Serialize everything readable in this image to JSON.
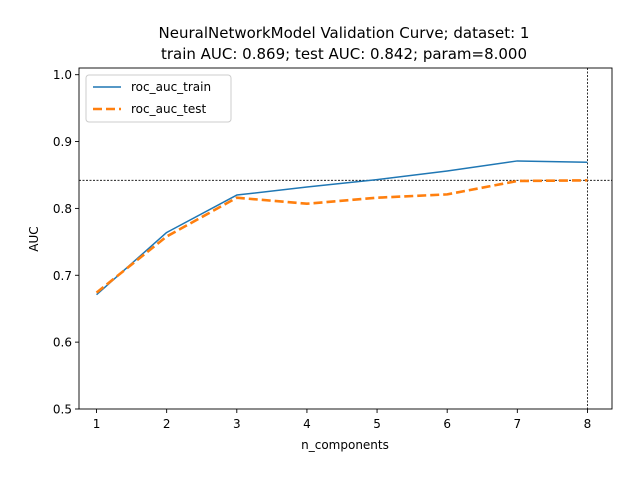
{
  "chart_data": {
    "type": "line",
    "title_line1": "NeuralNetworkModel Validation Curve; dataset: 1",
    "title_line2": "train AUC: 0.869; test AUC: 0.842; param=8.000",
    "xlabel": "n_components",
    "ylabel": "AUC",
    "xlim": [
      0.75,
      8.35
    ],
    "ylim": [
      0.5,
      1.01
    ],
    "xticks": [
      1,
      2,
      3,
      4,
      5,
      6,
      7,
      8
    ],
    "yticks": [
      0.5,
      0.6,
      0.7,
      0.8,
      0.9,
      1.0
    ],
    "ytick_labels": [
      "0.5",
      "0.6",
      "0.7",
      "0.8",
      "0.9",
      "1.0"
    ],
    "x": [
      1,
      2,
      3,
      4,
      5,
      6,
      7,
      8
    ],
    "series": [
      {
        "name": "roc_auc_train",
        "values": [
          0.671,
          0.764,
          0.82,
          0.832,
          0.843,
          0.856,
          0.871,
          0.869
        ],
        "color": "#1f77b4",
        "style": "solid"
      },
      {
        "name": "roc_auc_test",
        "values": [
          0.674,
          0.758,
          0.816,
          0.807,
          0.816,
          0.821,
          0.841,
          0.842
        ],
        "color": "#ff7f0e",
        "style": "dashed"
      }
    ],
    "reference_lines": {
      "hline": 0.842,
      "vline": 8
    },
    "legend_position": "upper-left",
    "grid": false
  }
}
